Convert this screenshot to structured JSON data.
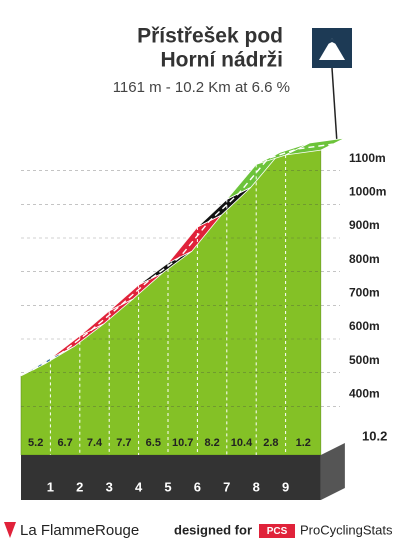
{
  "chart_data": {
    "type": "climb-profile",
    "title": [
      "Přístřešek pod",
      "Horní nádrži"
    ],
    "subtitle": "1161 m - 10.2 Km at 6.6 %",
    "altitude": 1161,
    "distance": 10.2,
    "km_labels": [
      1,
      2,
      3,
      4,
      5,
      6,
      7,
      8,
      9
    ],
    "segments": [
      {
        "gradient": 5.2,
        "color": "#2e6a96"
      },
      {
        "gradient": 6.7,
        "color": "#e0223a"
      },
      {
        "gradient": 7.4,
        "color": "#e0223a"
      },
      {
        "gradient": 7.7,
        "color": "#e0223a"
      },
      {
        "gradient": 6.5,
        "color": "#111111"
      },
      {
        "gradient": 10.7,
        "color": "#e0223a"
      },
      {
        "gradient": 8.2,
        "color": "#111111"
      },
      {
        "gradient": 10.4,
        "color": "#6cc33a"
      },
      {
        "gradient": 2.8,
        "color": "#6cc33a"
      },
      {
        "gradient": 1.2,
        "color": "#6cc33a"
      }
    ],
    "ylim": [
      300,
      1200
    ],
    "yticks": [
      {
        "value": 400,
        "label": "400m"
      },
      {
        "value": 500,
        "label": "500m"
      },
      {
        "value": 600,
        "label": "600m"
      },
      {
        "value": 700,
        "label": "700m"
      },
      {
        "value": 800,
        "label": "800m"
      },
      {
        "value": 900,
        "label": "900m"
      },
      {
        "value": 1000,
        "label": "1000m"
      },
      {
        "value": 1100,
        "label": "1100m"
      }
    ]
  },
  "footer": {
    "brand": "La FlammeRouge",
    "credit": "designed for",
    "logo": "PCS",
    "site": "ProCyclingStats"
  }
}
